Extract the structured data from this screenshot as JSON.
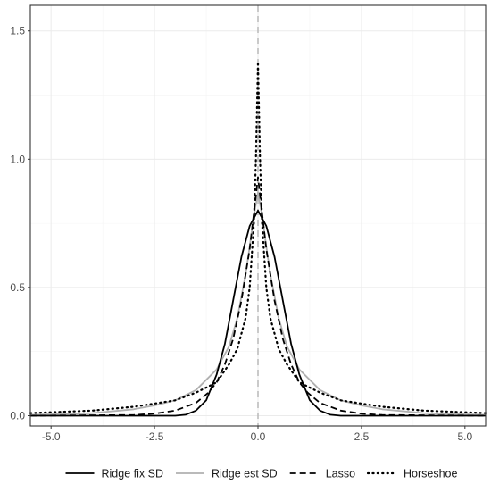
{
  "chart_data": {
    "type": "line",
    "title": "",
    "xlabel": "",
    "ylabel": "",
    "xlim": [
      -5.5,
      5.5
    ],
    "ylim": [
      -0.04,
      1.6
    ],
    "x_ticks": [
      -5.0,
      -2.5,
      0.0,
      2.5,
      5.0
    ],
    "x_tick_labels": [
      "-5.0",
      "-2.5",
      "0.0",
      "2.5",
      "5.0"
    ],
    "y_ticks": [
      0.0,
      0.5,
      1.0,
      1.5
    ],
    "y_tick_labels": [
      "0.0",
      "0.5",
      "1.0",
      "1.5"
    ],
    "grid": true,
    "legend_position": "bottom",
    "reference_line": {
      "x": 0,
      "color": "#bdbdbd",
      "style": "dashed"
    },
    "series": [
      {
        "name": "Ridge fix SD",
        "color": "#000000",
        "style": "solid",
        "x": [
          -5.5,
          -3.0,
          -2.0,
          -1.75,
          -1.5,
          -1.25,
          -1.0,
          -0.8,
          -0.6,
          -0.4,
          -0.2,
          0.0,
          0.2,
          0.4,
          0.6,
          0.8,
          1.0,
          1.25,
          1.5,
          1.75,
          2.0,
          3.0,
          5.5
        ],
        "y": [
          0.0,
          0.0,
          0.0,
          0.004,
          0.02,
          0.06,
          0.16,
          0.28,
          0.45,
          0.62,
          0.74,
          0.8,
          0.74,
          0.62,
          0.45,
          0.28,
          0.16,
          0.06,
          0.02,
          0.004,
          0.0,
          0.0,
          0.0
        ]
      },
      {
        "name": "Ridge est SD",
        "color": "#b0b0b0",
        "style": "solid",
        "x": [
          -5.5,
          -4.0,
          -3.0,
          -2.5,
          -2.0,
          -1.5,
          -1.0,
          -0.7,
          -0.5,
          -0.3,
          -0.2,
          -0.1,
          0.0,
          0.1,
          0.2,
          0.3,
          0.5,
          0.7,
          1.0,
          1.5,
          2.0,
          2.5,
          3.0,
          4.0,
          5.5
        ],
        "y": [
          0.003,
          0.01,
          0.025,
          0.04,
          0.06,
          0.1,
          0.18,
          0.27,
          0.38,
          0.55,
          0.66,
          0.78,
          0.87,
          0.78,
          0.66,
          0.55,
          0.38,
          0.27,
          0.18,
          0.1,
          0.06,
          0.04,
          0.025,
          0.01,
          0.003
        ]
      },
      {
        "name": "Lasso",
        "color": "#000000",
        "style": "dashed",
        "x": [
          -5.5,
          -3.0,
          -2.5,
          -2.0,
          -1.5,
          -1.2,
          -1.0,
          -0.8,
          -0.6,
          -0.4,
          -0.2,
          -0.1,
          0.0,
          0.1,
          0.2,
          0.4,
          0.6,
          0.8,
          1.0,
          1.2,
          1.5,
          2.0,
          2.5,
          3.0,
          5.5
        ],
        "y": [
          0.0,
          0.003,
          0.008,
          0.02,
          0.05,
          0.09,
          0.13,
          0.2,
          0.3,
          0.45,
          0.65,
          0.79,
          0.93,
          0.79,
          0.65,
          0.45,
          0.3,
          0.2,
          0.13,
          0.09,
          0.05,
          0.02,
          0.008,
          0.003,
          0.0
        ]
      },
      {
        "name": "Horseshoe",
        "color": "#000000",
        "style": "dotted",
        "x": [
          -5.5,
          -4.0,
          -3.0,
          -2.0,
          -1.5,
          -1.0,
          -0.7,
          -0.5,
          -0.3,
          -0.2,
          -0.1,
          -0.05,
          0.0,
          0.05,
          0.1,
          0.2,
          0.3,
          0.5,
          0.7,
          1.0,
          1.5,
          2.0,
          3.0,
          4.0,
          5.5
        ],
        "y": [
          0.01,
          0.02,
          0.035,
          0.06,
          0.09,
          0.13,
          0.2,
          0.26,
          0.38,
          0.5,
          0.75,
          1.0,
          1.38,
          1.0,
          0.75,
          0.5,
          0.38,
          0.26,
          0.2,
          0.13,
          0.09,
          0.06,
          0.035,
          0.02,
          0.01
        ]
      }
    ],
    "colors": {
      "panel_border": "#333333",
      "grid_major": "#ebebeb",
      "grid_minor": "#f4f4f4"
    }
  }
}
